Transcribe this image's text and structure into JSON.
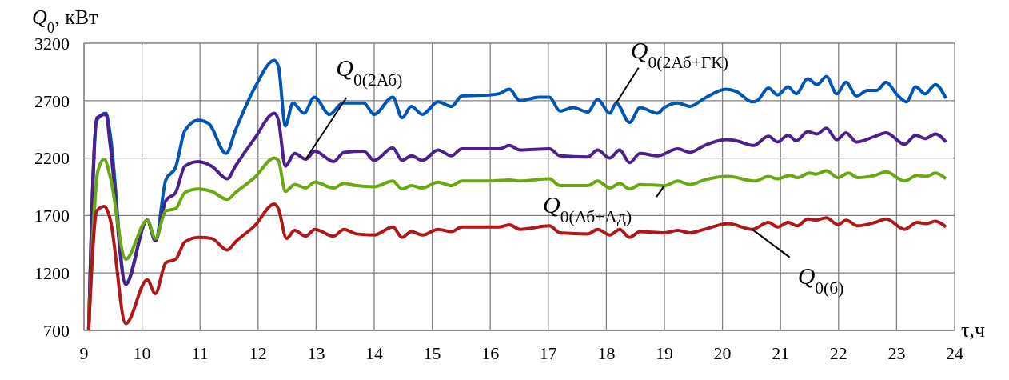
{
  "chart_data": {
    "type": "line",
    "xlabel": "τ,ч",
    "ylabel": "Q$_{0}$, кВт",
    "xlim": [
      9,
      24
    ],
    "xticks": [
      9,
      10,
      11,
      12,
      13,
      14,
      15,
      16,
      17,
      18,
      19,
      20,
      21,
      22,
      23,
      24
    ],
    "ylim": [
      700,
      3200
    ],
    "yticks": [
      700,
      1200,
      1700,
      2200,
      2700,
      3200
    ],
    "grid": true,
    "series": [
      {
        "name": "Q$_{0(2Аб+ГК)}$",
        "color": "#0055b8",
        "x": [
          9.08,
          9.22,
          9.38,
          9.45,
          9.72,
          10.09,
          10.23,
          10.41,
          10.58,
          10.74,
          10.97,
          11.15,
          11.45,
          11.61,
          11.94,
          12.28,
          12.35,
          12.47,
          12.6,
          12.79,
          12.97,
          13.23,
          13.46,
          13.82,
          14,
          14.32,
          14.48,
          14.64,
          14.83,
          15.1,
          15.33,
          15.51,
          16.01,
          16.15,
          16.33,
          16.51,
          16.84,
          17.02,
          17.2,
          17.43,
          17.68,
          17.85,
          18.06,
          18.17,
          18.4,
          18.58,
          18.88,
          19.0,
          19.23,
          19.44,
          19.69,
          20.06,
          20.24,
          20.51,
          20.6,
          20.79,
          20.95,
          21.13,
          21.27,
          21.47,
          21.63,
          21.79,
          21.97,
          22.13,
          22.31,
          22.5,
          22.66,
          22.82,
          23.01,
          23.17,
          23.33,
          23.49,
          23.67,
          23.85
        ],
        "values": [
          700,
          2530,
          2590,
          2410,
          1110,
          1660,
          1480,
          2010,
          2120,
          2440,
          2530,
          2500,
          2240,
          2440,
          2810,
          3050,
          3000,
          2480,
          2680,
          2590,
          2730,
          2580,
          2680,
          2680,
          2580,
          2730,
          2550,
          2650,
          2580,
          2690,
          2650,
          2740,
          2750,
          2760,
          2800,
          2700,
          2730,
          2730,
          2610,
          2640,
          2600,
          2710,
          2590,
          2680,
          2510,
          2640,
          2590,
          2640,
          2680,
          2650,
          2720,
          2800,
          2780,
          2690,
          2700,
          2810,
          2750,
          2820,
          2760,
          2890,
          2840,
          2910,
          2760,
          2860,
          2740,
          2790,
          2790,
          2860,
          2750,
          2690,
          2820,
          2760,
          2840,
          2720
        ]
      },
      {
        "name": "Q$_{0(2Аб)}$",
        "color": "#4b1f8c",
        "x": [
          9.08,
          9.22,
          9.38,
          9.45,
          9.72,
          10.09,
          10.23,
          10.41,
          10.58,
          10.74,
          10.97,
          11.2,
          11.47,
          11.61,
          11.94,
          12.28,
          12.35,
          12.47,
          12.63,
          12.82,
          12.98,
          13.3,
          13.48,
          13.82,
          14,
          14.32,
          14.48,
          14.64,
          14.83,
          15.1,
          15.33,
          15.51,
          16.15,
          16.33,
          16.51,
          17.02,
          17.2,
          17.68,
          17.85,
          18.06,
          18.23,
          18.4,
          18.58,
          18.88,
          19.23,
          19.44,
          19.69,
          20.06,
          20.24,
          20.54,
          20.79,
          20.95,
          21.13,
          21.27,
          21.47,
          21.63,
          21.79,
          21.97,
          22.13,
          22.31,
          22.63,
          22.82,
          23.14,
          23.33,
          23.49,
          23.67,
          23.85
        ],
        "values": [
          700,
          2550,
          2580,
          2320,
          1100,
          1660,
          1480,
          1830,
          1900,
          2130,
          2170,
          2130,
          2020,
          2130,
          2370,
          2590,
          2530,
          2130,
          2240,
          2190,
          2260,
          2170,
          2250,
          2260,
          2180,
          2290,
          2180,
          2220,
          2180,
          2270,
          2220,
          2280,
          2280,
          2310,
          2270,
          2280,
          2220,
          2210,
          2270,
          2200,
          2270,
          2160,
          2240,
          2220,
          2280,
          2250,
          2310,
          2360,
          2350,
          2310,
          2390,
          2340,
          2400,
          2350,
          2430,
          2410,
          2460,
          2360,
          2420,
          2340,
          2390,
          2420,
          2320,
          2400,
          2370,
          2410,
          2340
        ]
      },
      {
        "name": "Q$_{0(Аб+Ад)}$",
        "color": "#6aa812",
        "x": [
          9.08,
          9.24,
          9.35,
          9.45,
          9.72,
          10.09,
          10.23,
          10.41,
          10.58,
          10.74,
          10.97,
          11.2,
          11.47,
          11.61,
          11.94,
          12.28,
          12.35,
          12.47,
          12.63,
          12.82,
          12.98,
          13.3,
          13.48,
          13.69,
          14,
          14.32,
          14.48,
          14.64,
          14.83,
          15.1,
          15.33,
          15.51,
          16.01,
          16.33,
          16.51,
          17.02,
          17.2,
          17.68,
          17.85,
          18.06,
          18.23,
          18.4,
          18.58,
          19.0,
          19.23,
          19.44,
          19.69,
          20.1,
          20.56,
          20.79,
          20.95,
          21.16,
          21.29,
          21.5,
          21.61,
          21.79,
          21.99,
          22.17,
          22.33,
          22.63,
          22.82,
          23.14,
          23.35,
          23.51,
          23.67,
          23.85
        ],
        "values": [
          700,
          2090,
          2190,
          2040,
          1320,
          1660,
          1500,
          1740,
          1760,
          1900,
          1930,
          1910,
          1840,
          1900,
          2030,
          2200,
          2180,
          1910,
          1970,
          1940,
          1990,
          1940,
          1980,
          1960,
          1950,
          2000,
          1930,
          1960,
          1940,
          1990,
          1960,
          2000,
          2000,
          2010,
          2000,
          2020,
          1960,
          1960,
          2000,
          1940,
          1980,
          1930,
          1970,
          1960,
          2000,
          1970,
          2010,
          2040,
          2000,
          2040,
          2020,
          2050,
          2030,
          2070,
          2060,
          2090,
          2030,
          2070,
          2030,
          2050,
          2080,
          2000,
          2050,
          2040,
          2070,
          2020
        ]
      },
      {
        "name": "Q$_{0(б)}$",
        "color": "#b01818",
        "x": [
          9.08,
          9.22,
          9.35,
          9.45,
          9.72,
          10.09,
          10.23,
          10.41,
          10.58,
          10.74,
          10.97,
          11.2,
          11.47,
          11.61,
          11.94,
          12.28,
          12.35,
          12.49,
          12.63,
          12.82,
          12.98,
          13.3,
          13.48,
          13.69,
          14,
          14.32,
          14.48,
          14.64,
          14.83,
          15.1,
          15.33,
          15.51,
          16.15,
          16.33,
          16.51,
          17.02,
          17.2,
          17.68,
          17.85,
          18.06,
          18.23,
          18.4,
          18.58,
          19.0,
          19.23,
          19.44,
          19.69,
          20.1,
          20.51,
          20.79,
          20.95,
          21.13,
          21.29,
          21.47,
          21.61,
          21.79,
          21.99,
          22.13,
          22.33,
          22.63,
          22.82,
          23.14,
          23.35,
          23.51,
          23.67,
          23.85
        ],
        "values": [
          700,
          1740,
          1780,
          1670,
          760,
          1140,
          1020,
          1290,
          1320,
          1470,
          1510,
          1500,
          1400,
          1470,
          1610,
          1800,
          1760,
          1500,
          1570,
          1520,
          1580,
          1520,
          1580,
          1540,
          1530,
          1600,
          1510,
          1560,
          1530,
          1580,
          1560,
          1600,
          1600,
          1620,
          1580,
          1610,
          1550,
          1540,
          1580,
          1530,
          1580,
          1510,
          1560,
          1550,
          1570,
          1550,
          1580,
          1630,
          1580,
          1640,
          1600,
          1640,
          1610,
          1670,
          1660,
          1680,
          1620,
          1660,
          1610,
          1640,
          1670,
          1580,
          1640,
          1630,
          1650,
          1600
        ]
      }
    ]
  }
}
